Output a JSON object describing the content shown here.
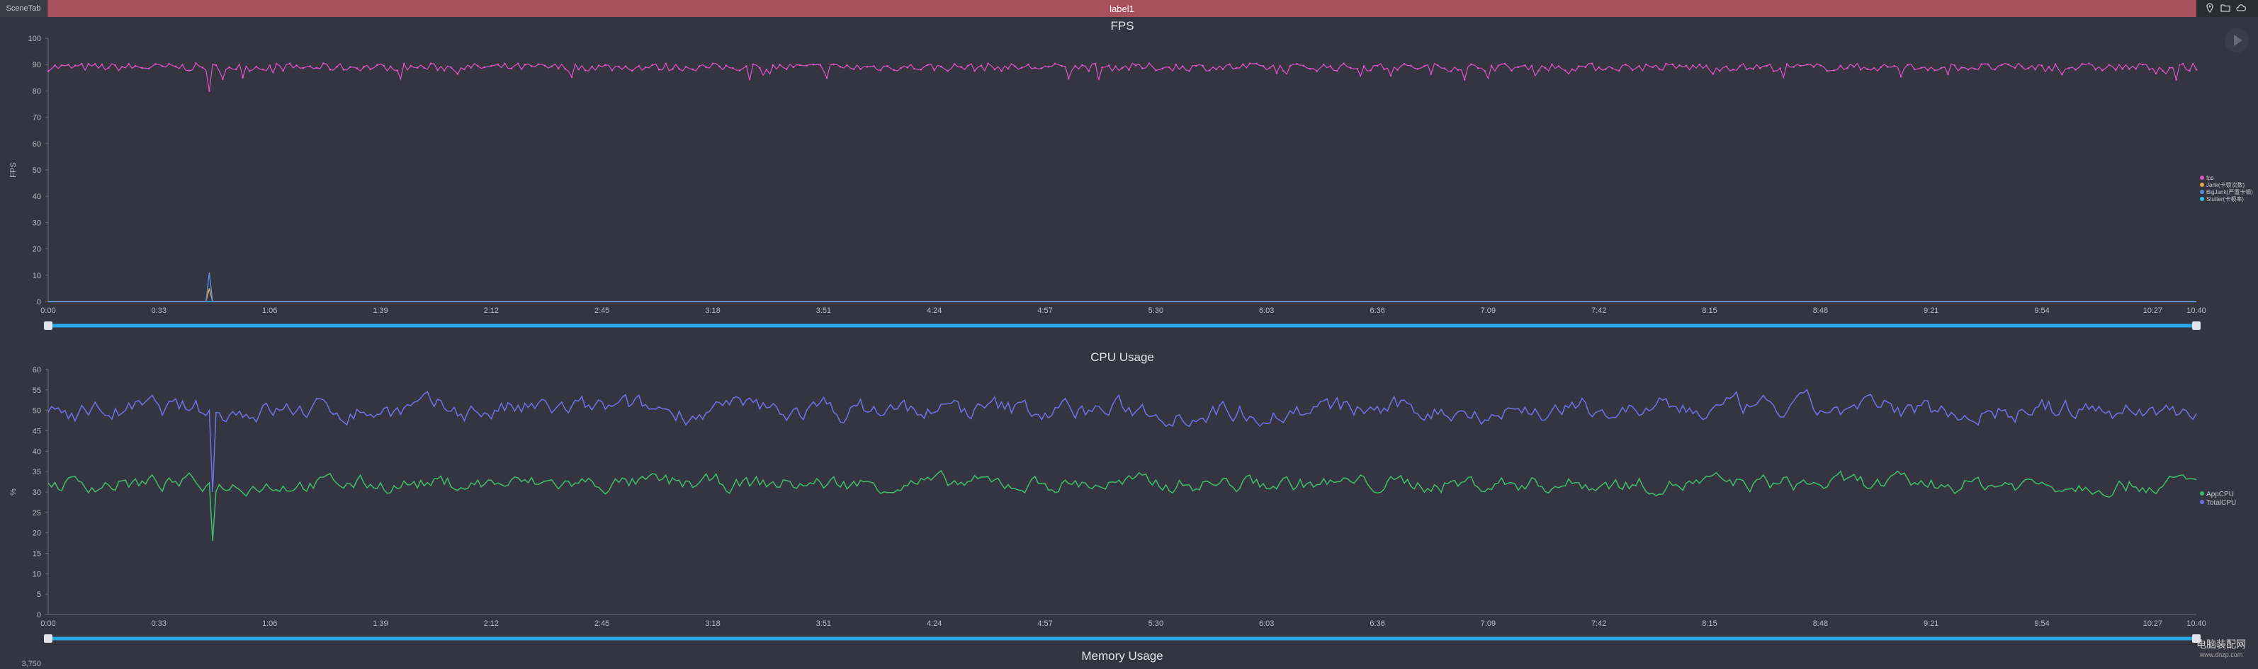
{
  "header": {
    "scene_tab": "SceneTab",
    "label": "label1"
  },
  "toolbar_icons": [
    "location-icon",
    "folder-icon",
    "cloud-icon"
  ],
  "watermark": {
    "text": "电脑装配网",
    "url": "www.dnzp.com"
  },
  "colors": {
    "background": "#343541",
    "label_bar": "#a8505c",
    "fps": "#e052c8",
    "jank": "#e6a640",
    "bigjank": "#5b8de6",
    "stutter": "#2ec4e8",
    "app_cpu": "#3fbf6a",
    "total_cpu": "#6f72e8",
    "slider": "#29a8e8"
  },
  "chart_data": [
    {
      "type": "line",
      "title": "FPS",
      "ylabel": "FPS",
      "ylim": [
        0,
        100
      ],
      "yticks": [
        "0",
        "10",
        "20",
        "30",
        "40",
        "50",
        "60",
        "70",
        "80",
        "90",
        "100"
      ],
      "xticks": [
        "0:00",
        "0:33",
        "1:06",
        "1:39",
        "2:12",
        "2:45",
        "3:18",
        "3:51",
        "4:24",
        "4:57",
        "5:30",
        "6:03",
        "6:36",
        "7:09",
        "7:42",
        "8:15",
        "8:48",
        "9:21",
        "9:54",
        "10:27",
        "10:40"
      ],
      "x_range_seconds": [
        0,
        640
      ],
      "legend": [
        "fps",
        "Jank(卡顿次数)",
        "BigJank(严重卡顿)",
        "Stutter(卡顿率)"
      ],
      "legend_position": "right",
      "series": [
        {
          "name": "fps",
          "baseline": 89,
          "min": 80,
          "min_at_seconds": 48
        },
        {
          "name": "Jank(卡顿次数)",
          "baseline": 0,
          "max": 5,
          "max_at_seconds": 48
        },
        {
          "name": "BigJank(严重卡顿)",
          "baseline": 0,
          "max": 11,
          "max_at_seconds": 48
        },
        {
          "name": "Stutter(卡顿率)",
          "baseline": 0
        }
      ]
    },
    {
      "type": "line",
      "title": "CPU Usage",
      "ylabel": "%",
      "ylim": [
        0,
        60
      ],
      "yticks": [
        "0",
        "5",
        "10",
        "15",
        "20",
        "25",
        "30",
        "35",
        "40",
        "45",
        "50",
        "55",
        "60"
      ],
      "xticks": [
        "0:00",
        "0:33",
        "1:06",
        "1:39",
        "2:12",
        "2:45",
        "3:18",
        "3:51",
        "4:24",
        "4:57",
        "5:30",
        "6:03",
        "6:36",
        "7:09",
        "7:42",
        "8:15",
        "8:48",
        "9:21",
        "9:54",
        "10:27",
        "10:40"
      ],
      "x_range_seconds": [
        0,
        640
      ],
      "legend": [
        "AppCPU",
        "TotalCPU"
      ],
      "legend_position": "right",
      "series": [
        {
          "name": "AppCPU",
          "baseline": 32,
          "min": 18,
          "min_at_seconds": 49,
          "max": 40
        },
        {
          "name": "TotalCPU",
          "baseline": 50,
          "min": 30,
          "min_at_seconds": 49,
          "max": 59
        }
      ]
    },
    {
      "type": "line",
      "title": "Memory Usage",
      "yticks": [
        "3,750"
      ]
    }
  ]
}
